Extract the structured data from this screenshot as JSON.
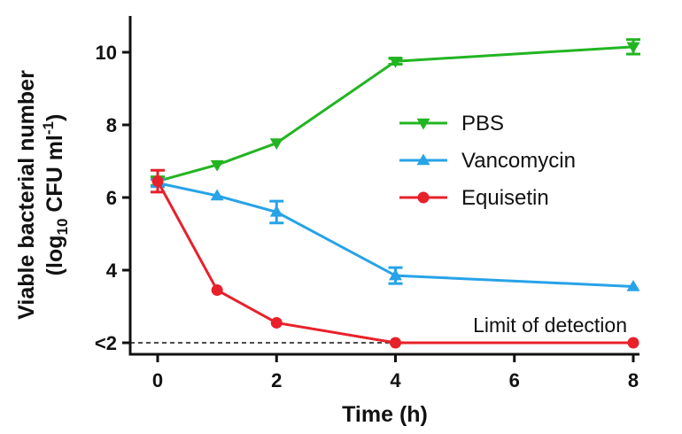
{
  "chart_data": {
    "type": "line",
    "xlabel": "Time (h)",
    "ylabel": {
      "line1": "Viable bacterial number",
      "line2_pre": "(log",
      "line2_sub": "10",
      "line2_mid": " CFU ml",
      "line2_sup": "-1",
      "line2_post": ")"
    },
    "xlim": [
      0,
      8
    ],
    "ylim": [
      2,
      11
    ],
    "x_ticks": [
      "0",
      "2",
      "4",
      "6",
      "8"
    ],
    "y_ticks": [
      "<2",
      "4",
      "6",
      "8",
      "10"
    ],
    "grid": false,
    "legend_position": "right-middle",
    "series": [
      {
        "name": "PBS",
        "color": "#22b522",
        "marker": "triangle-down",
        "x": [
          0,
          1,
          2,
          4,
          8
        ],
        "y": [
          6.45,
          6.9,
          7.5,
          9.75,
          10.15
        ],
        "err": [
          0.12,
          0.05,
          0.05,
          0.08,
          0.2
        ]
      },
      {
        "name": "Vancomycin",
        "color": "#27a3e8",
        "marker": "triangle-up",
        "x": [
          0,
          1,
          2,
          4,
          8
        ],
        "y": [
          6.4,
          6.05,
          5.6,
          3.85,
          3.55
        ],
        "err": [
          0.1,
          0.05,
          0.3,
          0.22,
          0.05
        ]
      },
      {
        "name": "Equisetin",
        "color": "#e8202a",
        "marker": "circle",
        "x": [
          0,
          1,
          2,
          4,
          8
        ],
        "y": [
          6.45,
          3.45,
          2.55,
          2.0,
          2.0
        ],
        "err": [
          0.3,
          0.05,
          0.05,
          0,
          0
        ]
      }
    ],
    "annotations": [
      {
        "text": "Limit of detection",
        "y": 2.0
      }
    ]
  }
}
